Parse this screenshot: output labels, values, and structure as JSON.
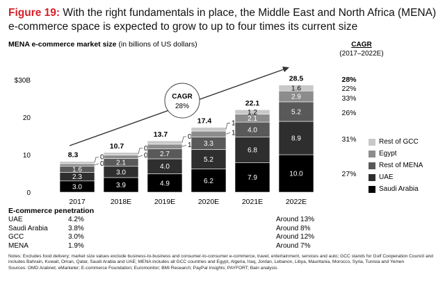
{
  "title": {
    "figure_label": "Figure 19:",
    "text": "With the right fundamentals in place, the Middle East and North Africa (MENA) e-commerce space is expected to grow to up to four times its current size"
  },
  "subtitle": {
    "bold": "MENA e-commerce market size",
    "rest": "(in billions of US dollars)"
  },
  "cagr_header": {
    "line1": "CAGR",
    "line2": "(2017–2022E)"
  },
  "chart_data": {
    "type": "bar",
    "stacked": true,
    "categories": [
      "2017",
      "2018E",
      "2019E",
      "2020E",
      "2021E",
      "2022E"
    ],
    "series": [
      {
        "name": "Saudi Arabia",
        "color": "#000000",
        "values": [
          3.0,
          3.9,
          4.9,
          6.2,
          7.9,
          10.0
        ],
        "cagr": "27%"
      },
      {
        "name": "UAE",
        "color": "#2e2e2e",
        "values": [
          2.3,
          3.0,
          4.0,
          5.2,
          6.8,
          8.9
        ],
        "cagr": "31%"
      },
      {
        "name": "Rest of MENA",
        "color": "#595959",
        "values": [
          1.6,
          2.1,
          2.7,
          3.3,
          4.0,
          5.2
        ],
        "cagr": "26%"
      },
      {
        "name": "Egypt",
        "color": "#8c8c8c",
        "values": [
          0.7,
          0.9,
          1.2,
          1.6,
          2.1,
          2.9
        ],
        "cagr": "33%"
      },
      {
        "name": "Rest of GCC",
        "color": "#c8c8c8",
        "values": [
          0.6,
          0.7,
          0.9,
          1.0,
          1.2,
          1.6
        ],
        "cagr": "22%"
      }
    ],
    "totals": [
      "8.3",
      "10.7",
      "13.7",
      "17.4",
      "22.1",
      "28.5"
    ],
    "total_cagr": "28%",
    "y_ticks": [
      "0",
      "10",
      "20",
      "$30B"
    ],
    "ylim": [
      0,
      30
    ],
    "cagr_bubble": {
      "label": "CAGR",
      "value": "28%"
    }
  },
  "penetration": {
    "title": "E-commerce penetration",
    "rows": [
      {
        "country": "UAE",
        "value": "4.2%",
        "forecast": "Around 13%"
      },
      {
        "country": "Saudi Arabia",
        "value": "3.8%",
        "forecast": "Around 8%"
      },
      {
        "country": "GCC",
        "value": "3.0%",
        "forecast": "Around 12%"
      },
      {
        "country": "MENA",
        "value": "1.9%",
        "forecast": "Around 7%"
      }
    ]
  },
  "notes": "Notes: Excludes food delivery; market size values exclude business-to-business and consumer-to-consumer e-commerce, travel, entertainment, services and auto; GCC stands for Gulf Cooperation Council and includes Bahrain, Kuwait, Oman, Qatar, Saudi Arabia and UAE; MENA includes all GCC countries and Egypt, Algeria, Iraq, Jordan, Lebanon, Libya, Mauritania, Morocco, Syria, Tunisia and Yemen",
  "sources": "Sources: OMD Arabnet; eMarketer; E-commerce Foundation; Euromonitor; BMI Research; PayPal Insights; PAYFORT; Bain analysis"
}
